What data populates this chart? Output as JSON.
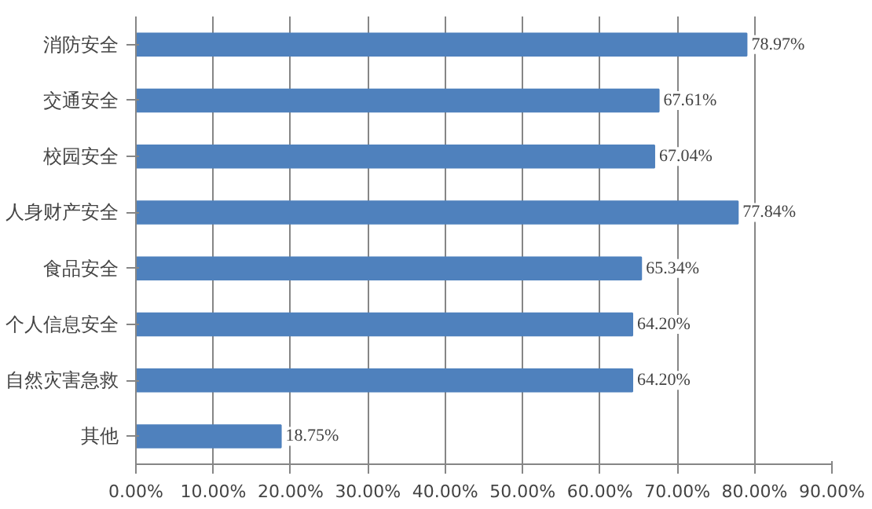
{
  "chart_data": {
    "type": "bar",
    "orientation": "horizontal",
    "categories": [
      "消防安全",
      "交通安全",
      "校园安全",
      "人身财产安全",
      "食品安全",
      "个人信息安全",
      "自然灾害急救",
      "其他"
    ],
    "values": [
      78.97,
      67.61,
      67.04,
      77.84,
      65.34,
      64.2,
      64.2,
      18.75
    ],
    "value_labels": [
      "78.97%",
      "67.61%",
      "67.04%",
      "77.84%",
      "65.34%",
      "64.20%",
      "64.20%",
      "18.75%"
    ],
    "color": "#4f81bd",
    "xlim": [
      0,
      90
    ],
    "xticks": [
      {
        "value": 0,
        "label": "0.00%"
      },
      {
        "value": 10,
        "label": "10.00%"
      },
      {
        "value": 20,
        "label": "20.00%"
      },
      {
        "value": 30,
        "label": "30.00%"
      },
      {
        "value": 40,
        "label": "40.00%"
      },
      {
        "value": 50,
        "label": "50.00%"
      },
      {
        "value": 60,
        "label": "60.00%"
      },
      {
        "value": 70,
        "label": "70.00%"
      },
      {
        "value": 80,
        "label": "80.00%"
      },
      {
        "value": 90,
        "label": "90.00%"
      }
    ],
    "grid": "x"
  }
}
